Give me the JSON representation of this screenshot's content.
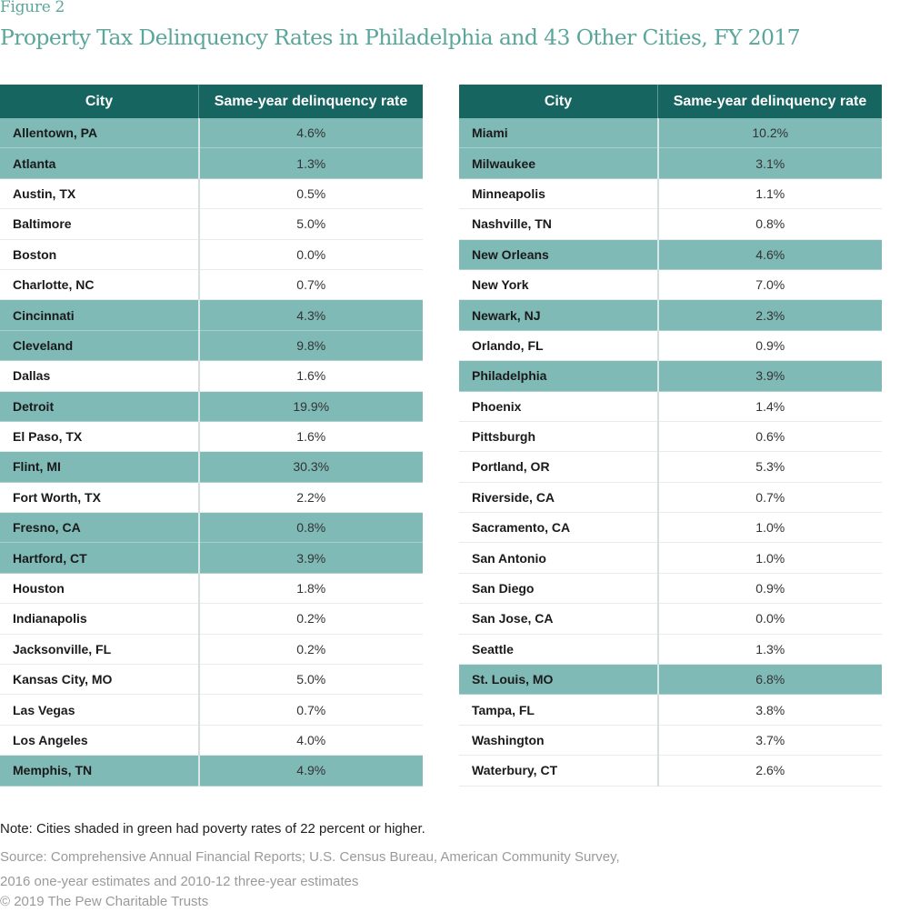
{
  "figure_label": "Figure 2",
  "title": "Property Tax Delinquency Rates in Philadelphia and 43 Other Cities, FY 2017",
  "colors": {
    "title": "#5aa69b",
    "header_bg": "#166561",
    "shaded_row": "#7fbab6"
  },
  "headers": {
    "city": "City",
    "rate": "Same-year delinquency rate"
  },
  "left_table": [
    {
      "city": "Allentown, PA",
      "rate": "4.6%",
      "shaded": true
    },
    {
      "city": "Atlanta",
      "rate": "1.3%",
      "shaded": true
    },
    {
      "city": "Austin, TX",
      "rate": "0.5%",
      "shaded": false
    },
    {
      "city": "Baltimore",
      "rate": "5.0%",
      "shaded": false
    },
    {
      "city": "Boston",
      "rate": "0.0%",
      "shaded": false
    },
    {
      "city": "Charlotte, NC",
      "rate": "0.7%",
      "shaded": false
    },
    {
      "city": "Cincinnati",
      "rate": "4.3%",
      "shaded": true
    },
    {
      "city": "Cleveland",
      "rate": "9.8%",
      "shaded": true
    },
    {
      "city": "Dallas",
      "rate": "1.6%",
      "shaded": false
    },
    {
      "city": "Detroit",
      "rate": "19.9%",
      "shaded": true
    },
    {
      "city": "El Paso, TX",
      "rate": "1.6%",
      "shaded": false
    },
    {
      "city": "Flint, MI",
      "rate": "30.3%",
      "shaded": true
    },
    {
      "city": "Fort Worth, TX",
      "rate": "2.2%",
      "shaded": false
    },
    {
      "city": "Fresno, CA",
      "rate": "0.8%",
      "shaded": true
    },
    {
      "city": "Hartford, CT",
      "rate": "3.9%",
      "shaded": true
    },
    {
      "city": "Houston",
      "rate": "1.8%",
      "shaded": false
    },
    {
      "city": "Indianapolis",
      "rate": "0.2%",
      "shaded": false
    },
    {
      "city": "Jacksonville, FL",
      "rate": "0.2%",
      "shaded": false
    },
    {
      "city": "Kansas City, MO",
      "rate": "5.0%",
      "shaded": false
    },
    {
      "city": "Las Vegas",
      "rate": "0.7%",
      "shaded": false
    },
    {
      "city": "Los Angeles",
      "rate": "4.0%",
      "shaded": false
    },
    {
      "city": "Memphis, TN",
      "rate": "4.9%",
      "shaded": true
    }
  ],
  "right_table": [
    {
      "city": "Miami",
      "rate": "10.2%",
      "shaded": true
    },
    {
      "city": "Milwaukee",
      "rate": "3.1%",
      "shaded": true
    },
    {
      "city": "Minneapolis",
      "rate": "1.1%",
      "shaded": false
    },
    {
      "city": "Nashville, TN",
      "rate": "0.8%",
      "shaded": false
    },
    {
      "city": "New Orleans",
      "rate": "4.6%",
      "shaded": true
    },
    {
      "city": "New York",
      "rate": "7.0%",
      "shaded": false
    },
    {
      "city": "Newark, NJ",
      "rate": "2.3%",
      "shaded": true
    },
    {
      "city": "Orlando, FL",
      "rate": "0.9%",
      "shaded": false
    },
    {
      "city": "Philadelphia",
      "rate": "3.9%",
      "shaded": true
    },
    {
      "city": "Phoenix",
      "rate": "1.4%",
      "shaded": false
    },
    {
      "city": "Pittsburgh",
      "rate": "0.6%",
      "shaded": false
    },
    {
      "city": "Portland, OR",
      "rate": "5.3%",
      "shaded": false
    },
    {
      "city": "Riverside, CA",
      "rate": "0.7%",
      "shaded": false
    },
    {
      "city": "Sacramento, CA",
      "rate": "1.0%",
      "shaded": false
    },
    {
      "city": "San Antonio",
      "rate": "1.0%",
      "shaded": false
    },
    {
      "city": "San Diego",
      "rate": "0.9%",
      "shaded": false
    },
    {
      "city": "San Jose, CA",
      "rate": "0.0%",
      "shaded": false
    },
    {
      "city": "Seattle",
      "rate": "1.3%",
      "shaded": false
    },
    {
      "city": "St. Louis, MO",
      "rate": "6.8%",
      "shaded": true
    },
    {
      "city": "Tampa, FL",
      "rate": "3.8%",
      "shaded": false
    },
    {
      "city": "Washington",
      "rate": "3.7%",
      "shaded": false
    },
    {
      "city": "Waterbury, CT",
      "rate": "2.6%",
      "shaded": false
    }
  ],
  "footer": {
    "note": "Note: Cities shaded in green had poverty rates of 22 percent or higher.",
    "source_line1": "Source: Comprehensive Annual Financial Reports; U.S. Census Bureau, American Community Survey,",
    "source_line2": "2016 one-year estimates and 2010-12 three-year estimates",
    "copyright": "© 2019 The Pew Charitable Trusts"
  }
}
